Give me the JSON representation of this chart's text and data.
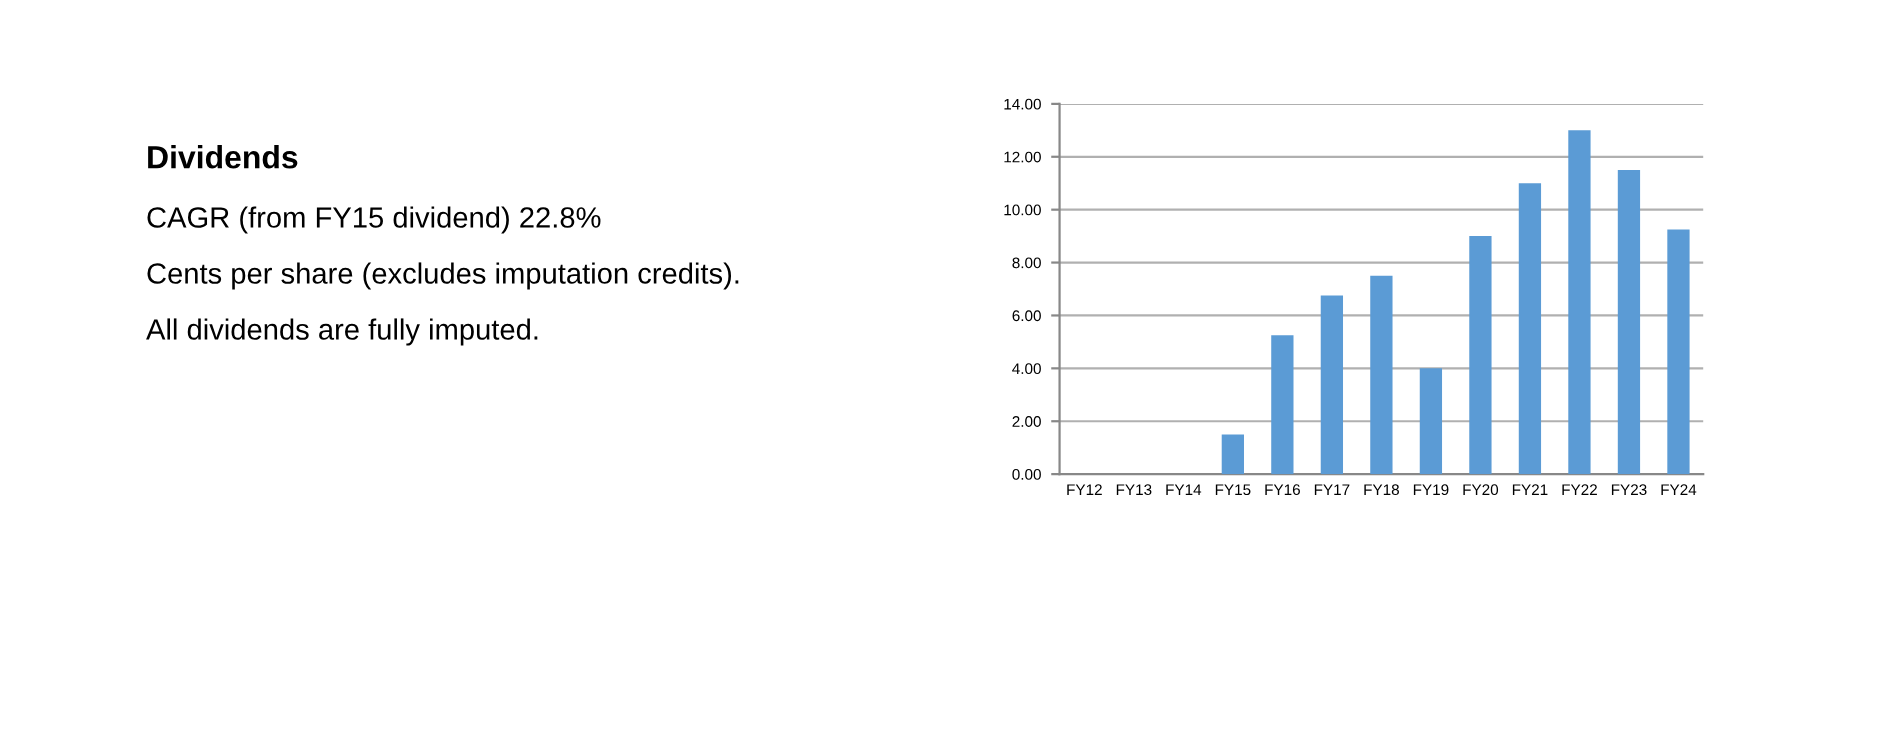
{
  "chart_data": {
    "type": "bar",
    "title": "Dividends",
    "annotations": [
      "CAGR (from FY15 dividend) 22.8%",
      "Cents per share (excludes imputation credits).",
      "All dividends are fully imputed."
    ],
    "categories": [
      "FY12",
      "FY13",
      "FY14",
      "FY15",
      "FY16",
      "FY17",
      "FY18",
      "FY19",
      "FY20",
      "FY21",
      "FY22",
      "FY23",
      "FY24"
    ],
    "values": [
      0,
      0,
      0,
      1.5,
      5.25,
      6.75,
      7.5,
      4,
      9,
      11,
      13,
      11.5,
      9.25
    ],
    "color": "#5b9bd5",
    "ylim": [
      0,
      14
    ],
    "yticks": [
      {
        "value": 0,
        "label": "0.00"
      },
      {
        "value": 2,
        "label": "2.00"
      },
      {
        "value": 4,
        "label": "4.00"
      },
      {
        "value": 6,
        "label": "6.00"
      },
      {
        "value": 8,
        "label": "8.00"
      },
      {
        "value": 10,
        "label": "10.00"
      },
      {
        "value": 12,
        "label": "12.00"
      },
      {
        "value": 14,
        "label": "14.00"
      }
    ],
    "grid": "y"
  }
}
